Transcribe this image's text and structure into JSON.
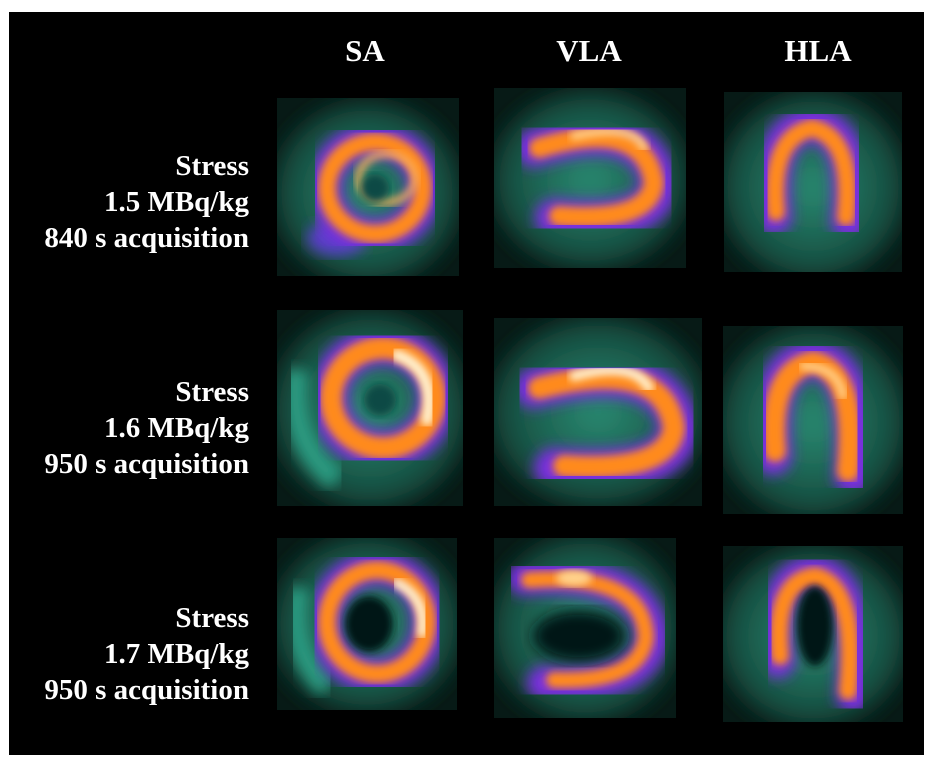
{
  "columns": [
    "SA",
    "VLA",
    "HLA"
  ],
  "rows": [
    {
      "condition": "Stress",
      "dose": "1.5 MBq/kg",
      "acquisition": "840 s acquisition"
    },
    {
      "condition": "Stress",
      "dose": "1.6 MBq/kg",
      "acquisition": "950 s acquisition"
    },
    {
      "condition": "Stress",
      "dose": "1.7 MBq/kg",
      "acquisition": "950 s acquisition"
    }
  ],
  "colors": {
    "background": "#000000",
    "tissue": "#1c6b5a",
    "mid": "#8a2be2",
    "hot": "#ff8c1a",
    "peak": "#fff2d0"
  }
}
